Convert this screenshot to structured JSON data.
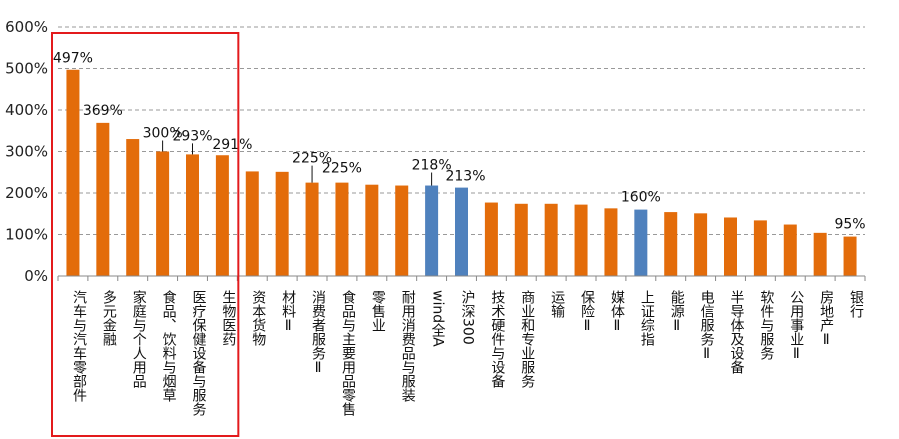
{
  "chart_data": {
    "type": "bar",
    "title": "",
    "xlabel": "",
    "ylabel": "",
    "ylim": [
      0,
      600
    ],
    "yticks": [
      "0%",
      "100%",
      "200%",
      "300%",
      "400%",
      "500%",
      "600%"
    ],
    "grid": true,
    "legend": "none",
    "colors": {
      "default": "#E36C0A",
      "highlight": "#4F81BD",
      "box": "#E31A1C",
      "grid": "#999999"
    },
    "highlight_categories": [
      "wind全A",
      "沪深300",
      "上证综指"
    ],
    "highlight_box_categories": [
      "汽车与汽车零部件",
      "多元金融",
      "家庭与个人用品",
      "食品、饮料与烟草",
      "医疗保健设备与服务",
      "生物医药"
    ],
    "categories": [
      "汽车与汽车零部件",
      "多元金融",
      "家庭与个人用品",
      "食品、饮料与烟草",
      "医疗保健设备与服务",
      "生物医药",
      "资本货物",
      "材料Ⅱ",
      "消费者服务Ⅱ",
      "食品与主要用品零售",
      "零售业",
      "耐用消费品与服装",
      "wind全A",
      "沪深300",
      "技术硬件与设备",
      "商业和专业服务",
      "运输",
      "保险Ⅱ",
      "媒体Ⅱ",
      "上证综指",
      "能源Ⅱ",
      "电信服务Ⅱ",
      "半导体及设备",
      "软件与服务",
      "公用事业Ⅱ",
      "房地产Ⅱ",
      "银行"
    ],
    "values": [
      497,
      369,
      330,
      300,
      293,
      291,
      252,
      251,
      225,
      225,
      220,
      218,
      218,
      213,
      177,
      174,
      174,
      172,
      163,
      160,
      154,
      151,
      141,
      134,
      124,
      104,
      95
    ],
    "data_labels": [
      {
        "index": 0,
        "text": "497%"
      },
      {
        "index": 1,
        "text": "369%"
      },
      {
        "index": 3,
        "text": "300%"
      },
      {
        "index": 4,
        "text": "293%"
      },
      {
        "index": 5,
        "text": "291%"
      },
      {
        "index": 8,
        "text": "225%"
      },
      {
        "index": 9,
        "text": "225%"
      },
      {
        "index": 12,
        "text": "218%"
      },
      {
        "index": 13,
        "text": "213%"
      },
      {
        "index": 19,
        "text": "160%"
      },
      {
        "index": 26,
        "text": "95%"
      }
    ]
  }
}
